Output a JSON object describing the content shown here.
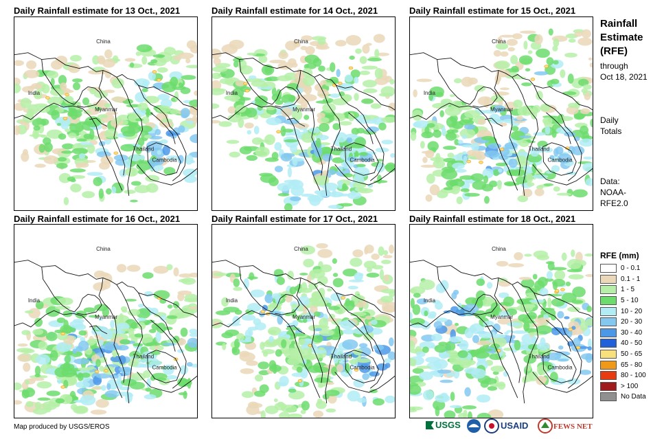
{
  "panels": [
    {
      "title": "Daily Rainfall estimate for 13 Oct., 2021"
    },
    {
      "title": "Daily Rainfall estimate for 14 Oct., 2021"
    },
    {
      "title": "Daily Rainfall estimate for 15 Oct., 2021"
    },
    {
      "title": "Daily Rainfall estimate for 16 Oct., 2021"
    },
    {
      "title": "Daily Rainfall estimate for 17 Oct., 2021"
    },
    {
      "title": "Daily Rainfall estimate for 18 Oct., 2021"
    }
  ],
  "map_labels": {
    "china": "China",
    "india": "India",
    "myanmar": "Myanmar",
    "thailand": "Thailand",
    "cambodia": "Cambodia"
  },
  "side": {
    "title_line1": "Rainfall",
    "title_line2": "Estimate",
    "title_line3": "(RFE)",
    "through_line1": "through",
    "through_line2": "Oct 18, 2021",
    "daily_line1": "Daily",
    "daily_line2": "Totals",
    "data_line1": "Data:",
    "data_line2": "NOAA-",
    "data_line3": "RFE2.0"
  },
  "legend": {
    "title": "RFE (mm)",
    "items": [
      {
        "label": "0 - 0.1",
        "color": "#ffffff"
      },
      {
        "label": "0.1 - 1",
        "color": "#ead8b8"
      },
      {
        "label": "1 - 5",
        "color": "#b6f0a8"
      },
      {
        "label": "5 - 10",
        "color": "#6cdc6c"
      },
      {
        "label": "10 - 20",
        "color": "#b2ecf4"
      },
      {
        "label": "20 - 30",
        "color": "#84c8f0"
      },
      {
        "label": "30 - 40",
        "color": "#4c98e8"
      },
      {
        "label": "40 - 50",
        "color": "#2060d8"
      },
      {
        "label": "50 - 65",
        "color": "#f8e07c"
      },
      {
        "label": "65 - 80",
        "color": "#f09818"
      },
      {
        "label": "80 - 100",
        "color": "#e83c10"
      },
      {
        "label": "> 100",
        "color": "#a01c1c"
      },
      {
        "label": "No Data",
        "color": "#909090"
      }
    ]
  },
  "credit": "Map produced by USGS/EROS",
  "logos": {
    "usgs": "USGS",
    "usaid": "USAID",
    "fewsnet": "FEWS NET"
  }
}
